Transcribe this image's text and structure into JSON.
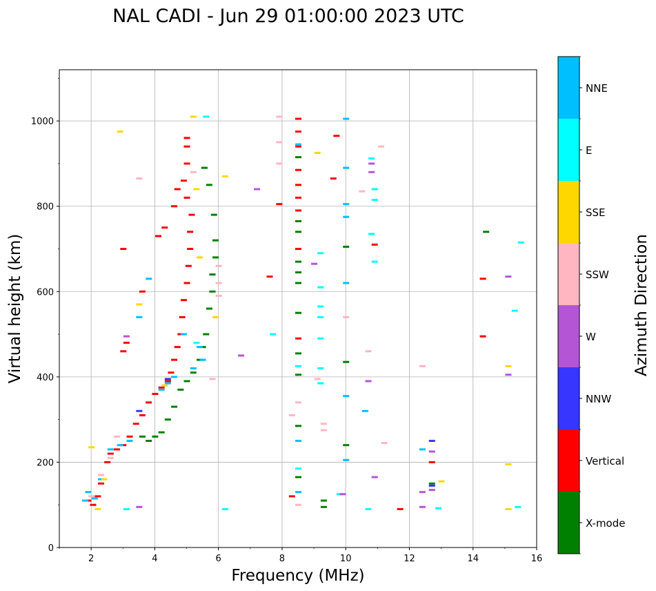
{
  "chart_data": {
    "type": "scatter",
    "title": "NAL CADI - Jun 29 01:00:00 2023 UTC",
    "xlabel": "Frequency (MHz)",
    "ylabel": "Virtual height (km)",
    "xlim": [
      1,
      16
    ],
    "ylim": [
      0,
      1120
    ],
    "xticks": [
      "2",
      "4",
      "6",
      "8",
      "10",
      "12",
      "14",
      "16"
    ],
    "xtick_values": [
      2,
      4,
      6,
      8,
      10,
      12,
      14,
      16
    ],
    "yticks": [
      "0",
      "200",
      "400",
      "600",
      "800",
      "1000"
    ],
    "ytick_values": [
      0,
      200,
      400,
      600,
      800,
      1000
    ],
    "grid": true,
    "colorbar": {
      "label": "Azimuth Direction",
      "categories": [
        "X-mode",
        "Vertical",
        "NNW",
        "W",
        "SSW",
        "SSE",
        "E",
        "NNE"
      ],
      "colors": [
        "#008000",
        "#ff0000",
        "#3636ff",
        "#b455d6",
        "#ffb6c1",
        "#ffd700",
        "#00ffff",
        "#00bfff"
      ]
    },
    "series": [
      {
        "name": "Vertical",
        "color": "#ff0000",
        "points": [
          [
            1.9,
            110
          ],
          [
            2.05,
            100
          ],
          [
            2.2,
            120
          ],
          [
            2.3,
            150
          ],
          [
            2.5,
            200
          ],
          [
            2.6,
            220
          ],
          [
            2.8,
            230
          ],
          [
            3.0,
            240
          ],
          [
            3.2,
            260
          ],
          [
            3.4,
            290
          ],
          [
            3.6,
            310
          ],
          [
            3.8,
            340
          ],
          [
            4.0,
            360
          ],
          [
            4.2,
            375
          ],
          [
            4.4,
            390
          ],
          [
            4.5,
            410
          ],
          [
            4.6,
            440
          ],
          [
            4.7,
            470
          ],
          [
            4.8,
            500
          ],
          [
            4.85,
            540
          ],
          [
            4.9,
            580
          ],
          [
            5.0,
            620
          ],
          [
            5.05,
            660
          ],
          [
            5.1,
            700
          ],
          [
            5.1,
            740
          ],
          [
            5.15,
            780
          ],
          [
            5.0,
            820
          ],
          [
            4.9,
            860
          ],
          [
            5.0,
            900
          ],
          [
            5.0,
            940
          ],
          [
            5.0,
            960
          ],
          [
            3.6,
            600
          ],
          [
            3.0,
            460
          ],
          [
            3.1,
            480
          ],
          [
            3.0,
            700
          ],
          [
            4.1,
            730
          ],
          [
            4.3,
            750
          ],
          [
            4.6,
            800
          ],
          [
            4.7,
            840
          ],
          [
            8.5,
            1005
          ],
          [
            8.5,
            975
          ],
          [
            8.5,
            940
          ],
          [
            8.5,
            885
          ],
          [
            8.5,
            850
          ],
          [
            8.5,
            820
          ],
          [
            8.5,
            790
          ],
          [
            8.5,
            700
          ],
          [
            8.5,
            490
          ],
          [
            8.3,
            120
          ],
          [
            7.6,
            635
          ],
          [
            7.9,
            805
          ],
          [
            9.6,
            865
          ],
          [
            9.7,
            965
          ],
          [
            10.9,
            710
          ],
          [
            11.7,
            90
          ],
          [
            14.3,
            630
          ],
          [
            14.3,
            495
          ],
          [
            12.7,
            200
          ]
        ]
      },
      {
        "name": "X-mode",
        "color": "#008000",
        "points": [
          [
            3.6,
            260
          ],
          [
            3.8,
            250
          ],
          [
            4.0,
            260
          ],
          [
            4.2,
            270
          ],
          [
            4.4,
            300
          ],
          [
            4.6,
            330
          ],
          [
            4.8,
            370
          ],
          [
            5.0,
            390
          ],
          [
            5.2,
            410
          ],
          [
            5.4,
            440
          ],
          [
            5.5,
            470
          ],
          [
            5.6,
            500
          ],
          [
            5.7,
            560
          ],
          [
            5.8,
            600
          ],
          [
            5.8,
            640
          ],
          [
            5.9,
            680
          ],
          [
            5.9,
            720
          ],
          [
            5.85,
            780
          ],
          [
            5.7,
            850
          ],
          [
            5.55,
            890
          ],
          [
            8.5,
            915
          ],
          [
            8.5,
            765
          ],
          [
            8.5,
            740
          ],
          [
            8.5,
            670
          ],
          [
            8.5,
            645
          ],
          [
            8.5,
            620
          ],
          [
            8.5,
            550
          ],
          [
            8.5,
            455
          ],
          [
            8.5,
            405
          ],
          [
            8.5,
            285
          ],
          [
            8.5,
            165
          ],
          [
            9.3,
            110
          ],
          [
            9.3,
            95
          ],
          [
            10.0,
            435
          ],
          [
            10.0,
            240
          ],
          [
            10.0,
            705
          ],
          [
            12.7,
            150
          ],
          [
            14.4,
            740
          ]
        ]
      },
      {
        "name": "NNE",
        "color": "#00bfff",
        "points": [
          [
            1.8,
            110
          ],
          [
            1.9,
            130
          ],
          [
            2.1,
            115
          ],
          [
            2.3,
            160
          ],
          [
            2.6,
            230
          ],
          [
            2.9,
            240
          ],
          [
            3.2,
            250
          ],
          [
            3.5,
            540
          ],
          [
            3.8,
            630
          ],
          [
            4.2,
            370
          ],
          [
            4.4,
            385
          ],
          [
            4.6,
            400
          ],
          [
            4.9,
            500
          ],
          [
            5.2,
            420
          ],
          [
            5.4,
            470
          ],
          [
            5.5,
            440
          ],
          [
            8.5,
            945
          ],
          [
            8.5,
            250
          ],
          [
            8.5,
            130
          ],
          [
            10.0,
            1005
          ],
          [
            10.0,
            890
          ],
          [
            10.0,
            805
          ],
          [
            10.0,
            775
          ],
          [
            10.0,
            620
          ],
          [
            10.0,
            355
          ],
          [
            10.0,
            205
          ],
          [
            10.6,
            320
          ],
          [
            12.4,
            230
          ]
        ]
      },
      {
        "name": "E",
        "color": "#00ffff",
        "points": [
          [
            5.3,
            480
          ],
          [
            5.6,
            1010
          ],
          [
            8.5,
            425
          ],
          [
            8.5,
            185
          ],
          [
            9.2,
            690
          ],
          [
            9.2,
            610
          ],
          [
            9.2,
            565
          ],
          [
            9.2,
            540
          ],
          [
            9.2,
            490
          ],
          [
            9.2,
            420
          ],
          [
            9.2,
            385
          ],
          [
            9.8,
            125
          ],
          [
            10.8,
            912
          ],
          [
            10.8,
            735
          ],
          [
            10.9,
            840
          ],
          [
            10.9,
            815
          ],
          [
            10.9,
            670
          ],
          [
            10.7,
            90
          ],
          [
            12.9,
            92
          ],
          [
            15.5,
            715
          ],
          [
            15.3,
            555
          ],
          [
            15.4,
            95
          ],
          [
            3.1,
            90
          ],
          [
            6.2,
            90
          ],
          [
            7.7,
            500
          ]
        ]
      },
      {
        "name": "SSE",
        "color": "#ffd700",
        "points": [
          [
            2.0,
            235
          ],
          [
            2.2,
            90
          ],
          [
            2.4,
            160
          ],
          [
            2.9,
            975
          ],
          [
            3.5,
            570
          ],
          [
            5.2,
            1010
          ],
          [
            5.3,
            840
          ],
          [
            5.4,
            680
          ],
          [
            5.9,
            540
          ],
          [
            6.2,
            870
          ],
          [
            9.1,
            925
          ],
          [
            13.0,
            155
          ],
          [
            15.1,
            425
          ],
          [
            15.1,
            195
          ],
          [
            15.1,
            90
          ],
          [
            4.3,
            380
          ]
        ]
      },
      {
        "name": "SSW",
        "color": "#ffb6c1",
        "points": [
          [
            2.0,
            120
          ],
          [
            2.3,
            170
          ],
          [
            2.6,
            210
          ],
          [
            2.8,
            260
          ],
          [
            3.5,
            865
          ],
          [
            5.2,
            880
          ],
          [
            6.0,
            620
          ],
          [
            6.0,
            660
          ],
          [
            6.0,
            590
          ],
          [
            5.8,
            395
          ],
          [
            7.9,
            1010
          ],
          [
            7.9,
            900
          ],
          [
            7.9,
            950
          ],
          [
            8.5,
            340
          ],
          [
            8.5,
            100
          ],
          [
            9.1,
            395
          ],
          [
            9.3,
            290
          ],
          [
            9.3,
            275
          ],
          [
            10.0,
            540
          ],
          [
            10.5,
            835
          ],
          [
            10.7,
            460
          ],
          [
            11.1,
            940
          ],
          [
            11.2,
            245
          ],
          [
            12.4,
            425
          ],
          [
            8.3,
            310
          ]
        ]
      },
      {
        "name": "W",
        "color": "#b455d6",
        "points": [
          [
            3.1,
            495
          ],
          [
            6.7,
            450
          ],
          [
            7.2,
            840
          ],
          [
            9.0,
            665
          ],
          [
            9.9,
            125
          ],
          [
            10.7,
            390
          ],
          [
            10.8,
            880
          ],
          [
            10.8,
            900
          ],
          [
            10.9,
            165
          ],
          [
            12.7,
            225
          ],
          [
            12.7,
            135
          ],
          [
            12.4,
            130
          ],
          [
            12.4,
            95
          ],
          [
            15.1,
            635
          ],
          [
            15.1,
            405
          ],
          [
            3.5,
            95
          ]
        ]
      },
      {
        "name": "NNW",
        "color": "#3636ff",
        "points": [
          [
            12.7,
            250
          ],
          [
            12.7,
            145
          ],
          [
            3.5,
            320
          ],
          [
            4.4,
            395
          ]
        ]
      }
    ]
  }
}
